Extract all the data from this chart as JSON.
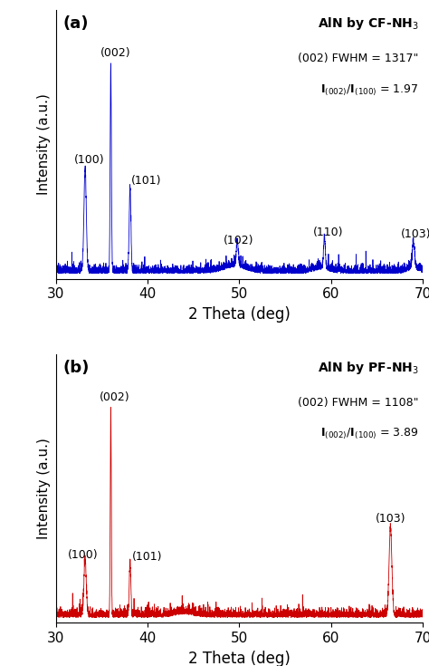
{
  "panel_a": {
    "title": "AlN by CF-NH$_3$",
    "color": "#0000CC",
    "fwhm_text": "(002) FWHM = 1317\"",
    "ratio_text": "$\\mathbf{I}_{(002)}$/$\\mathbf{I}_{(100)}$ = 1.97",
    "peaks": {
      "100": 33.2,
      "002": 36.0,
      "101": 38.1,
      "102": 49.8,
      "110": 59.3,
      "103": 69.0
    },
    "peak_heights": {
      "100": 0.5,
      "002": 1.0,
      "101": 0.4,
      "102": 0.12,
      "110": 0.15,
      "103": 0.13
    },
    "peak_widths": {
      "100": 0.3,
      "002": 0.15,
      "101": 0.22,
      "102": 0.25,
      "110": 0.22,
      "103": 0.28
    }
  },
  "panel_b": {
    "title": "AlN by PF-NH$_3$",
    "color": "#CC0000",
    "fwhm_text": "(002) FWHM = 1108\"",
    "ratio_text": "$\\mathbf{I}_{(002)}$/$\\mathbf{I}_{(100)}$ = 3.89",
    "peaks": {
      "100": 33.2,
      "002": 36.0,
      "101": 38.1,
      "103": 66.5
    },
    "peak_heights": {
      "100": 0.26,
      "002": 1.0,
      "101": 0.25,
      "103": 0.42
    },
    "peak_widths": {
      "100": 0.3,
      "002": 0.13,
      "101": 0.2,
      "103": 0.35
    }
  },
  "xlim": [
    30,
    70
  ],
  "xlabel": "2 Theta (deg)",
  "ylabel": "Intensity (a.u.)",
  "noise_level": 0.018,
  "noise_spike_prob": 0.97,
  "noise_spike_scale": 0.018,
  "baseline": 0.015,
  "xticks": [
    30,
    40,
    50,
    60,
    70
  ]
}
